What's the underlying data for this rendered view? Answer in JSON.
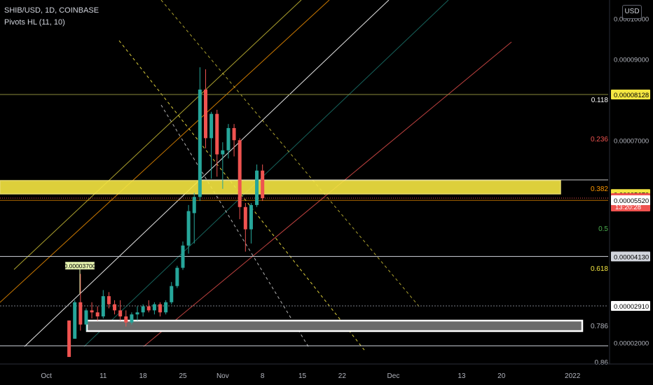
{
  "header": {
    "symbol": "SHIB/USD, 1D, COINBASE",
    "indicator": "Pivots HL (11, 10)"
  },
  "currency_button": "USD",
  "colors": {
    "up": "#26a69a",
    "down": "#ef5350",
    "zone_yellow": "#f5e642",
    "zone_white": "#ffffff",
    "fib_0118": "#ffffff",
    "fib_0236": "#ef5350",
    "fib_0382": "#ff9800",
    "fib_05": "#4caf50",
    "fib_0618": "#f5e642",
    "fib_0786": "#b2b5be"
  },
  "price_axis": {
    "ticks": [
      {
        "label": "0.00009000",
        "value": 9e-05
      },
      {
        "label": "0.00007000",
        "value": 7e-05
      }
    ]
  },
  "price_tags": [
    {
      "label": "0.00008128",
      "value": 8.128e-05,
      "style": "yellow"
    },
    {
      "label": "0.00005670",
      "value": 5.67e-05,
      "style": "yellow"
    },
    {
      "label": "0.00005570",
      "value": 5.57e-05,
      "style": "red",
      "sublabel": "13:20:28"
    },
    {
      "label": "0.00005520",
      "value": 5.52e-05,
      "style": "white"
    },
    {
      "label": "0.00004130",
      "value": 4.13e-05,
      "style": "grey"
    },
    {
      "label": "0.00002910",
      "value": 2.91e-05,
      "style": "white"
    }
  ],
  "partial_ticks": [
    {
      "label": "0.00010000",
      "value": 0.0001
    },
    {
      "label": "0.00002000",
      "value": 2e-05
    }
  ],
  "fib_labels": [
    {
      "label": "0.118",
      "value": 8.128e-05
    },
    {
      "label": "0.236",
      "value": 7.15e-05
    },
    {
      "label": "0.382",
      "value": 5.67e-05
    },
    {
      "label": "0.5",
      "value": 5.05e-05
    },
    {
      "label": "0.618",
      "value": 3.85e-05
    },
    {
      "label": "0.786",
      "value": 2.4e-05
    },
    {
      "label": "0.86",
      "value": 1.68e-05
    }
  ],
  "time_axis": [
    "Oct",
    "11",
    "18",
    "25",
    "Nov",
    "8",
    "15",
    "22",
    "Dec",
    "13",
    "20",
    "2022"
  ],
  "pivot_label": "0.00003700",
  "chart_data": {
    "type": "candlestick",
    "symbol": "SHIB/USD",
    "interval": "1D",
    "exchange": "COINBASE",
    "ylim": [
      1.4e-05,
      0.000102
    ],
    "candles": [
      {
        "date": "2021-10-05",
        "open": 2.55e-05,
        "high": 2.55e-05,
        "low": 1.65e-05,
        "close": 1.65e-05
      },
      {
        "date": "2021-10-06",
        "open": 2.1e-05,
        "high": 3.05e-05,
        "low": 2.1e-05,
        "close": 3e-05
      },
      {
        "date": "2021-10-07",
        "open": 3e-05,
        "high": 3.7e-05,
        "low": 2.3e-05,
        "close": 2.45e-05
      },
      {
        "date": "2021-10-08",
        "open": 2.45e-05,
        "high": 2.85e-05,
        "low": 2.3e-05,
        "close": 2.8e-05
      },
      {
        "date": "2021-10-09",
        "open": 2.8e-05,
        "high": 3e-05,
        "low": 2.6e-05,
        "close": 2.75e-05
      },
      {
        "date": "2021-10-10",
        "open": 2.75e-05,
        "high": 2.9e-05,
        "low": 2.55e-05,
        "close": 2.65e-05
      },
      {
        "date": "2021-10-11",
        "open": 2.65e-05,
        "high": 3.3e-05,
        "low": 2.6e-05,
        "close": 3.15e-05
      },
      {
        "date": "2021-10-12",
        "open": 3.15e-05,
        "high": 3.25e-05,
        "low": 2.85e-05,
        "close": 2.95e-05
      },
      {
        "date": "2021-10-13",
        "open": 2.95e-05,
        "high": 3.05e-05,
        "low": 2.7e-05,
        "close": 2.8e-05
      },
      {
        "date": "2021-10-14",
        "open": 2.8e-05,
        "high": 3.05e-05,
        "low": 2.55e-05,
        "close": 2.65e-05
      },
      {
        "date": "2021-10-15",
        "open": 2.65e-05,
        "high": 2.8e-05,
        "low": 2.4e-05,
        "close": 2.5e-05
      },
      {
        "date": "2021-10-16",
        "open": 2.5e-05,
        "high": 2.75e-05,
        "low": 2.45e-05,
        "close": 2.7e-05
      },
      {
        "date": "2021-10-17",
        "open": 2.7e-05,
        "high": 2.9e-05,
        "low": 2.55e-05,
        "close": 2.75e-05
      },
      {
        "date": "2021-10-18",
        "open": 2.75e-05,
        "high": 2.95e-05,
        "low": 2.65e-05,
        "close": 2.9e-05
      },
      {
        "date": "2021-10-19",
        "open": 2.9e-05,
        "high": 3.05e-05,
        "low": 2.75e-05,
        "close": 2.8e-05
      },
      {
        "date": "2021-10-20",
        "open": 2.8e-05,
        "high": 3e-05,
        "low": 2.7e-05,
        "close": 2.95e-05
      },
      {
        "date": "2021-10-21",
        "open": 2.95e-05,
        "high": 3e-05,
        "low": 2.65e-05,
        "close": 2.75e-05
      },
      {
        "date": "2021-10-22",
        "open": 2.75e-05,
        "high": 3.05e-05,
        "low": 2.7e-05,
        "close": 3e-05
      },
      {
        "date": "2021-10-23",
        "open": 3e-05,
        "high": 3.5e-05,
        "low": 2.95e-05,
        "close": 3.4e-05
      },
      {
        "date": "2021-10-24",
        "open": 3.4e-05,
        "high": 3.9e-05,
        "low": 3.35e-05,
        "close": 3.85e-05
      },
      {
        "date": "2021-10-25",
        "open": 3.85e-05,
        "high": 4.5e-05,
        "low": 3.8e-05,
        "close": 4.4e-05
      },
      {
        "date": "2021-10-26",
        "open": 4.4e-05,
        "high": 5.4e-05,
        "low": 4.2e-05,
        "close": 5.25e-05
      },
      {
        "date": "2021-10-27",
        "open": 5.2e-05,
        "high": 5.7e-05,
        "low": 4.45e-05,
        "close": 5.6e-05
      },
      {
        "date": "2021-10-28",
        "open": 5.6e-05,
        "high": 8.8e-05,
        "low": 5.5e-05,
        "close": 8.25e-05
      },
      {
        "date": "2021-10-29",
        "open": 8.25e-05,
        "high": 8.75e-05,
        "low": 6.8e-05,
        "close": 7.05e-05
      },
      {
        "date": "2021-10-30",
        "open": 7.05e-05,
        "high": 7.7e-05,
        "low": 6.05e-05,
        "close": 7.65e-05
      },
      {
        "date": "2021-10-31",
        "open": 7.65e-05,
        "high": 7.75e-05,
        "low": 6.1e-05,
        "close": 6.65e-05
      },
      {
        "date": "2021-11-01",
        "open": 6.65e-05,
        "high": 6.95e-05,
        "low": 5.8e-05,
        "close": 6.75e-05
      },
      {
        "date": "2021-11-02",
        "open": 6.75e-05,
        "high": 7.4e-05,
        "low": 6.55e-05,
        "close": 7.3e-05
      },
      {
        "date": "2021-11-03",
        "open": 7.3e-05,
        "high": 7.4e-05,
        "low": 6.6e-05,
        "close": 7e-05
      },
      {
        "date": "2021-11-04",
        "open": 7e-05,
        "high": 7.05e-05,
        "low": 5.05e-05,
        "close": 5.35e-05
      },
      {
        "date": "2021-11-05",
        "open": 5.35e-05,
        "high": 5.45e-05,
        "low": 4.25e-05,
        "close": 4.8e-05
      },
      {
        "date": "2021-11-06",
        "open": 4.8e-05,
        "high": 5.45e-05,
        "low": 4.45e-05,
        "close": 5.4e-05
      },
      {
        "date": "2021-11-07",
        "open": 5.4e-05,
        "high": 6.4e-05,
        "low": 5.35e-05,
        "close": 6.25e-05
      },
      {
        "date": "2021-11-08",
        "open": 6.25e-05,
        "high": 6.4e-05,
        "low": 5.5e-05,
        "close": 5.57e-05
      }
    ]
  }
}
